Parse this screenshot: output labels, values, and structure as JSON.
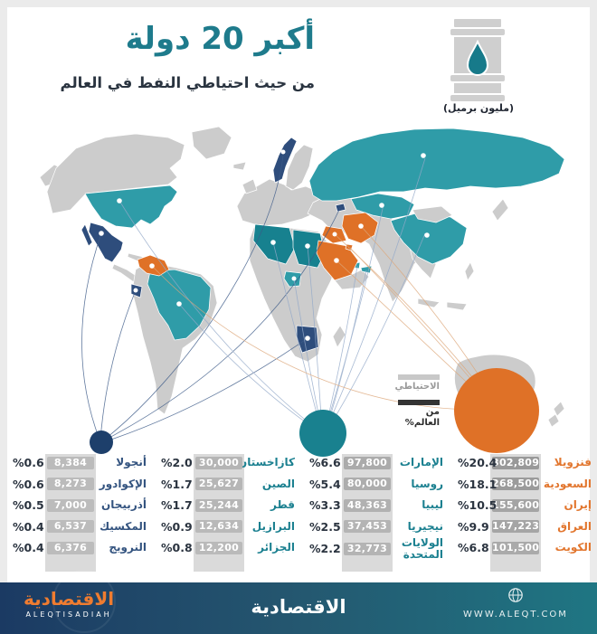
{
  "header": {
    "title": "أكبر 20 دولة",
    "subtitle": "من حيث احتياطي النفط في العالم",
    "unit": "(مليون برميل)",
    "barrel_icon": "oil-barrel-with-drop-icon"
  },
  "legend": {
    "reserves_label": "الاحتياطي",
    "world_share_label": "من العالم%"
  },
  "table": {
    "columns": [
      {
        "group": "orange",
        "rows": [
          {
            "name": "فنزويلا",
            "value": "302,809",
            "pct": "%20.4"
          },
          {
            "name": "السعودية",
            "value": "268,500",
            "pct": "%18.1"
          },
          {
            "name": "إيران",
            "value": "155,600",
            "pct": "%10.5"
          },
          {
            "name": "العراق",
            "value": "147,223",
            "pct": "%9.9"
          },
          {
            "name": "الكويت",
            "value": "101,500",
            "pct": "%6.8"
          }
        ]
      },
      {
        "group": "teal",
        "rows": [
          {
            "name": "الإمارات",
            "value": "97,800",
            "pct": "%6.6"
          },
          {
            "name": "روسيا",
            "value": "80,000",
            "pct": "%5.4"
          },
          {
            "name": "ليبيا",
            "value": "48,363",
            "pct": "%3.3"
          },
          {
            "name": "نيجيريا",
            "value": "37,453",
            "pct": "%2.5"
          },
          {
            "name": "الولايات المتحدة",
            "value": "32,773",
            "pct": "%2.2"
          }
        ]
      },
      {
        "group": "teal",
        "rows": [
          {
            "name": "كازاخستان",
            "value": "30,000",
            "pct": "%2.0"
          },
          {
            "name": "الصين",
            "value": "25,627",
            "pct": "%1.7"
          },
          {
            "name": "قطر",
            "value": "25,244",
            "pct": "%1.7"
          },
          {
            "name": "البرازيل",
            "value": "12,634",
            "pct": "%0.9"
          },
          {
            "name": "الجزائر",
            "value": "12,200",
            "pct": "%0.8"
          }
        ]
      },
      {
        "group": "navy",
        "rows": [
          {
            "name": "أنجولا",
            "value": "8,384",
            "pct": "%0.6"
          },
          {
            "name": "الإكوادور",
            "value": "8,273",
            "pct": "%0.6"
          },
          {
            "name": "أذربيجان",
            "value": "7,000",
            "pct": "%0.5"
          },
          {
            "name": "المكسيك",
            "value": "6,537",
            "pct": "%0.4"
          },
          {
            "name": "النرويج",
            "value": "6,376",
            "pct": "%0.4"
          }
        ]
      }
    ]
  },
  "footer": {
    "logo_ar": "الاقتصادية",
    "logo_en": "ALEQTISADIAH",
    "brand_center": "الاقتصادية",
    "globe_icon": "globe-icon",
    "website": "WWW.ALEQT.COM"
  },
  "colors": {
    "teal": "#1e7b8c",
    "map_teal": "#2f9ca8",
    "map_dark_teal": "#17818f",
    "orange": "#df7127",
    "navy": "#2e4d7c",
    "gray_land": "#cccccc",
    "badge_gray": "#b0b0b0",
    "dark_text": "#2a3440"
  },
  "chart_data": {
    "type": "table",
    "title": "أكبر 20 دولة",
    "subtitle": "من حيث احتياطي النفط في العالم",
    "unit": "مليون برميل",
    "legend": [
      "الاحتياطي",
      "من العالم%"
    ],
    "note": "bubble-map: three bubbles sized by group share; orange=ranks 1-5, teal=ranks 6-15, navy=ranks 16-20",
    "rows": [
      {
        "country": "فنزويلا",
        "reserves_mbbl": 302809,
        "world_pct": 20.4,
        "group": "orange"
      },
      {
        "country": "السعودية",
        "reserves_mbbl": 268500,
        "world_pct": 18.1,
        "group": "orange"
      },
      {
        "country": "إيران",
        "reserves_mbbl": 155600,
        "world_pct": 10.5,
        "group": "orange"
      },
      {
        "country": "العراق",
        "reserves_mbbl": 147223,
        "world_pct": 9.9,
        "group": "orange"
      },
      {
        "country": "الكويت",
        "reserves_mbbl": 101500,
        "world_pct": 6.8,
        "group": "orange"
      },
      {
        "country": "الإمارات",
        "reserves_mbbl": 97800,
        "world_pct": 6.6,
        "group": "teal"
      },
      {
        "country": "روسيا",
        "reserves_mbbl": 80000,
        "world_pct": 5.4,
        "group": "teal"
      },
      {
        "country": "ليبيا",
        "reserves_mbbl": 48363,
        "world_pct": 3.3,
        "group": "teal"
      },
      {
        "country": "نيجيريا",
        "reserves_mbbl": 37453,
        "world_pct": 2.5,
        "group": "teal"
      },
      {
        "country": "الولايات المتحدة",
        "reserves_mbbl": 32773,
        "world_pct": 2.2,
        "group": "teal"
      },
      {
        "country": "كازاخستان",
        "reserves_mbbl": 30000,
        "world_pct": 2.0,
        "group": "teal"
      },
      {
        "country": "الصين",
        "reserves_mbbl": 25627,
        "world_pct": 1.7,
        "group": "teal"
      },
      {
        "country": "قطر",
        "reserves_mbbl": 25244,
        "world_pct": 1.7,
        "group": "teal"
      },
      {
        "country": "البرازيل",
        "reserves_mbbl": 12634,
        "world_pct": 0.9,
        "group": "teal"
      },
      {
        "country": "الجزائر",
        "reserves_mbbl": 12200,
        "world_pct": 0.8,
        "group": "teal"
      },
      {
        "country": "أنجولا",
        "reserves_mbbl": 8384,
        "world_pct": 0.6,
        "group": "navy"
      },
      {
        "country": "الإكوادور",
        "reserves_mbbl": 8273,
        "world_pct": 0.6,
        "group": "navy"
      },
      {
        "country": "أذربيجان",
        "reserves_mbbl": 7000,
        "world_pct": 0.5,
        "group": "navy"
      },
      {
        "country": "المكسيك",
        "reserves_mbbl": 6537,
        "world_pct": 0.4,
        "group": "navy"
      },
      {
        "country": "النرويج",
        "reserves_mbbl": 6376,
        "world_pct": 0.4,
        "group": "navy"
      }
    ]
  }
}
